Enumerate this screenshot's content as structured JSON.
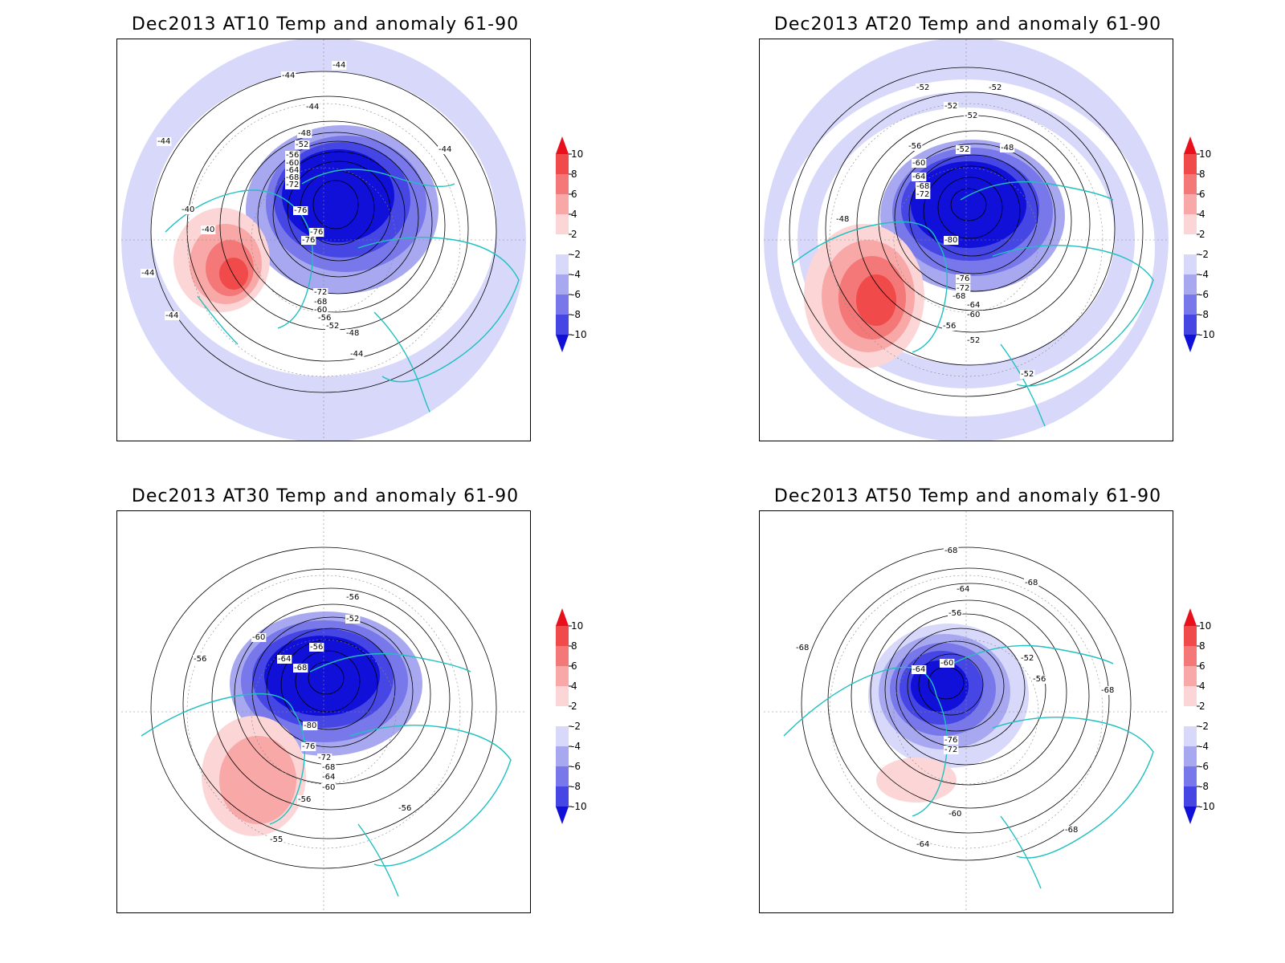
{
  "panels": [
    {
      "title": "Dec2013 AT10 Temp and anomaly 61-90",
      "contour_labels": [
        "-40",
        "-40",
        "-44",
        "-44",
        "-44",
        "-44",
        "-44",
        "-44",
        "-44",
        "-44",
        "-48",
        "-48",
        "-52",
        "-52",
        "-56",
        "-56",
        "-60",
        "-60",
        "-64",
        "-68",
        "-68",
        "-72",
        "-72",
        "-76",
        "-76",
        "-76"
      ]
    },
    {
      "title": "Dec2013 AT20 Temp and anomaly 61-90",
      "contour_labels": [
        "-48",
        "-48",
        "-52",
        "-52",
        "-52",
        "-52",
        "-52",
        "-52",
        "-52",
        "-56",
        "-56",
        "-60",
        "-60",
        "-64",
        "-64",
        "-68",
        "-68",
        "-72",
        "-72",
        "-76",
        "-80"
      ]
    },
    {
      "title": "Dec2013 AT30 Temp and anomaly 61-90",
      "contour_labels": [
        "-52",
        "-55",
        "-56",
        "-56",
        "-56",
        "-56",
        "-56",
        "-60",
        "-60",
        "-64",
        "-64",
        "-68",
        "-68",
        "-72",
        "-76",
        "-80"
      ]
    },
    {
      "title": "Dec2013 AT50 Temp and anomaly 61-90",
      "contour_labels": [
        "-52",
        "-56",
        "-56",
        "-60",
        "-60",
        "-64",
        "-64",
        "-64",
        "-68",
        "-68",
        "-68",
        "-68",
        "-68",
        "-72",
        "-76"
      ]
    }
  ],
  "colorbar": {
    "tick_labels": [
      "10",
      "8",
      "6",
      "4",
      "2",
      "-2",
      "-4",
      "-6",
      "-8",
      "-10"
    ],
    "colors": [
      "#e8101a",
      "#f04a4a",
      "#f57878",
      "#f9a8a8",
      "#fcd6d6",
      "#ffffff",
      "#d8d8fa",
      "#a8a8f0",
      "#7878ea",
      "#4646e4",
      "#1010d8"
    ]
  },
  "style": {
    "coastline_color": "#20c0c0",
    "contour_color": "#000000"
  }
}
